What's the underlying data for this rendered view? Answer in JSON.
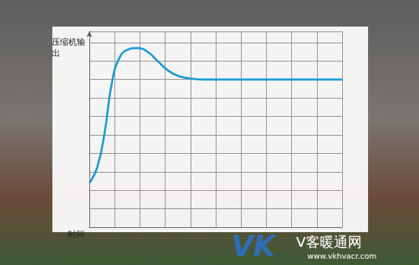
{
  "chart_data": {
    "type": "line",
    "x_label": "时间",
    "y_label": "压缩机输出",
    "x": [
      0,
      0.3,
      0.6,
      0.9,
      1.2,
      1.5,
      1.9,
      2.3,
      2.7,
      3.1,
      3.5,
      4,
      4.5,
      5,
      10
    ],
    "values": [
      2.4,
      3.2,
      5.1,
      7.9,
      9.2,
      9.6,
      9.7,
      9.5,
      9.0,
      8.5,
      8.2,
      8.05,
      8.0,
      8.0,
      8.0
    ],
    "color": "#1e9ad6",
    "xlim": [
      0,
      10
    ],
    "xticks": [
      0,
      1,
      2,
      3,
      4,
      5,
      6,
      7,
      8,
      9,
      10
    ],
    "ylim": [
      0,
      10.6
    ],
    "yticks": [
      0,
      1,
      2,
      3,
      4,
      5,
      6,
      7,
      8,
      9,
      10
    ],
    "grid": true,
    "tick_labels": false,
    "annotations": [
      "VK",
      "V客暖通网",
      "www.vkhvacr.com"
    ]
  }
}
